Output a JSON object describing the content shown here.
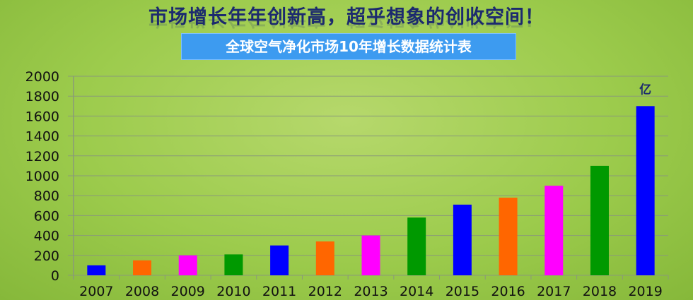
{
  "header": {
    "headline": "市场增长年年创新高，超乎想象的创收空间！",
    "subtitle": "全球空气净化市场10年增长数据统计表"
  },
  "chart_data": {
    "type": "bar",
    "title": "全球空气净化市场10年增长数据统计表",
    "unit_label": "亿",
    "categories": [
      "2007",
      "2008",
      "2009",
      "2010",
      "2011",
      "2012",
      "2013",
      "2014",
      "2015",
      "2016",
      "2017",
      "2018",
      "2019"
    ],
    "values": [
      100,
      150,
      200,
      210,
      300,
      340,
      400,
      580,
      710,
      780,
      900,
      1100,
      1700
    ],
    "colors": [
      "#0000ff",
      "#ff6600",
      "#ff00ff",
      "#009900",
      "#0000ff",
      "#ff6600",
      "#ff00ff",
      "#009900",
      "#0000ff",
      "#ff6600",
      "#ff00ff",
      "#009900",
      "#0000ff"
    ],
    "ylim": [
      0,
      2000
    ],
    "yticks": [
      0,
      200,
      400,
      600,
      800,
      1000,
      1200,
      1400,
      1600,
      1800,
      2000
    ],
    "grid": true,
    "legend": "none"
  }
}
